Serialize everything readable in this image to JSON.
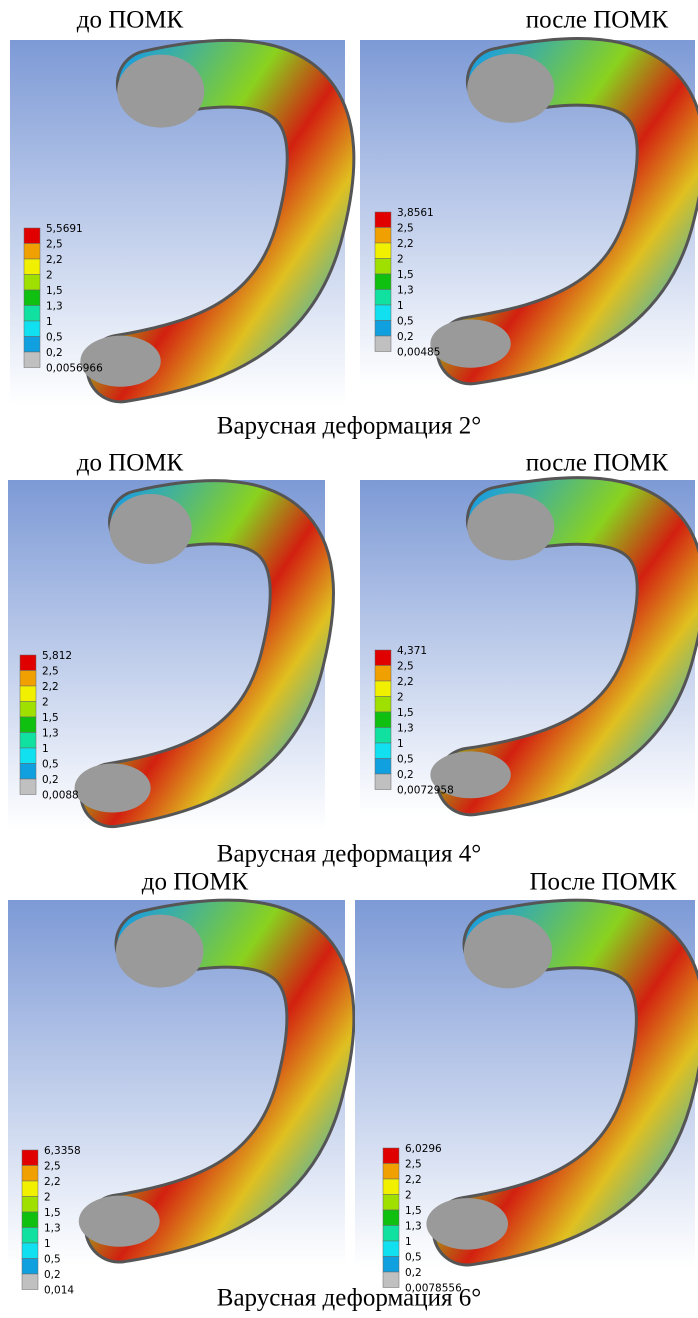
{
  "rows": [
    {
      "caption": "Варусная деформация 2°",
      "panels": [
        {
          "label": "до ПОМК",
          "legend": [
            "5,5691",
            "2,5",
            "2,2",
            "2",
            "1,5",
            "1,3",
            "1",
            "0,5",
            "0,2",
            "0,0056966"
          ]
        },
        {
          "label": "после ПОМК",
          "legend": [
            "3,8561",
            "2,5",
            "2,2",
            "2",
            "1,5",
            "1,3",
            "1",
            "0,5",
            "0,2",
            "0,00485"
          ]
        }
      ]
    },
    {
      "caption": "Варусная деформация 4°",
      "panels": [
        {
          "label": "до ПОМК",
          "legend": [
            "5,812",
            "2,5",
            "2,2",
            "2",
            "1,5",
            "1,3",
            "1",
            "0,5",
            "0,2",
            "0,0088"
          ]
        },
        {
          "label": "после ПОМК",
          "legend": [
            "4,371",
            "2,5",
            "2,2",
            "2",
            "1,5",
            "1,3",
            "1",
            "0,5",
            "0,2",
            "0,0072958"
          ]
        }
      ]
    },
    {
      "caption": "Варусная деформация 6°",
      "panels": [
        {
          "label": "до ПОМК",
          "legend": [
            "6,3358",
            "2,5",
            "2,2",
            "2",
            "1,5",
            "1,3",
            "1",
            "0,5",
            "0,2",
            "0,014"
          ]
        },
        {
          "label": "После ПОМК",
          "legend": [
            "6,0296",
            "2,5",
            "2,2",
            "2",
            "1,5",
            "1,3",
            "1",
            "0,5",
            "0,2",
            "0,0078556"
          ]
        }
      ]
    }
  ]
}
